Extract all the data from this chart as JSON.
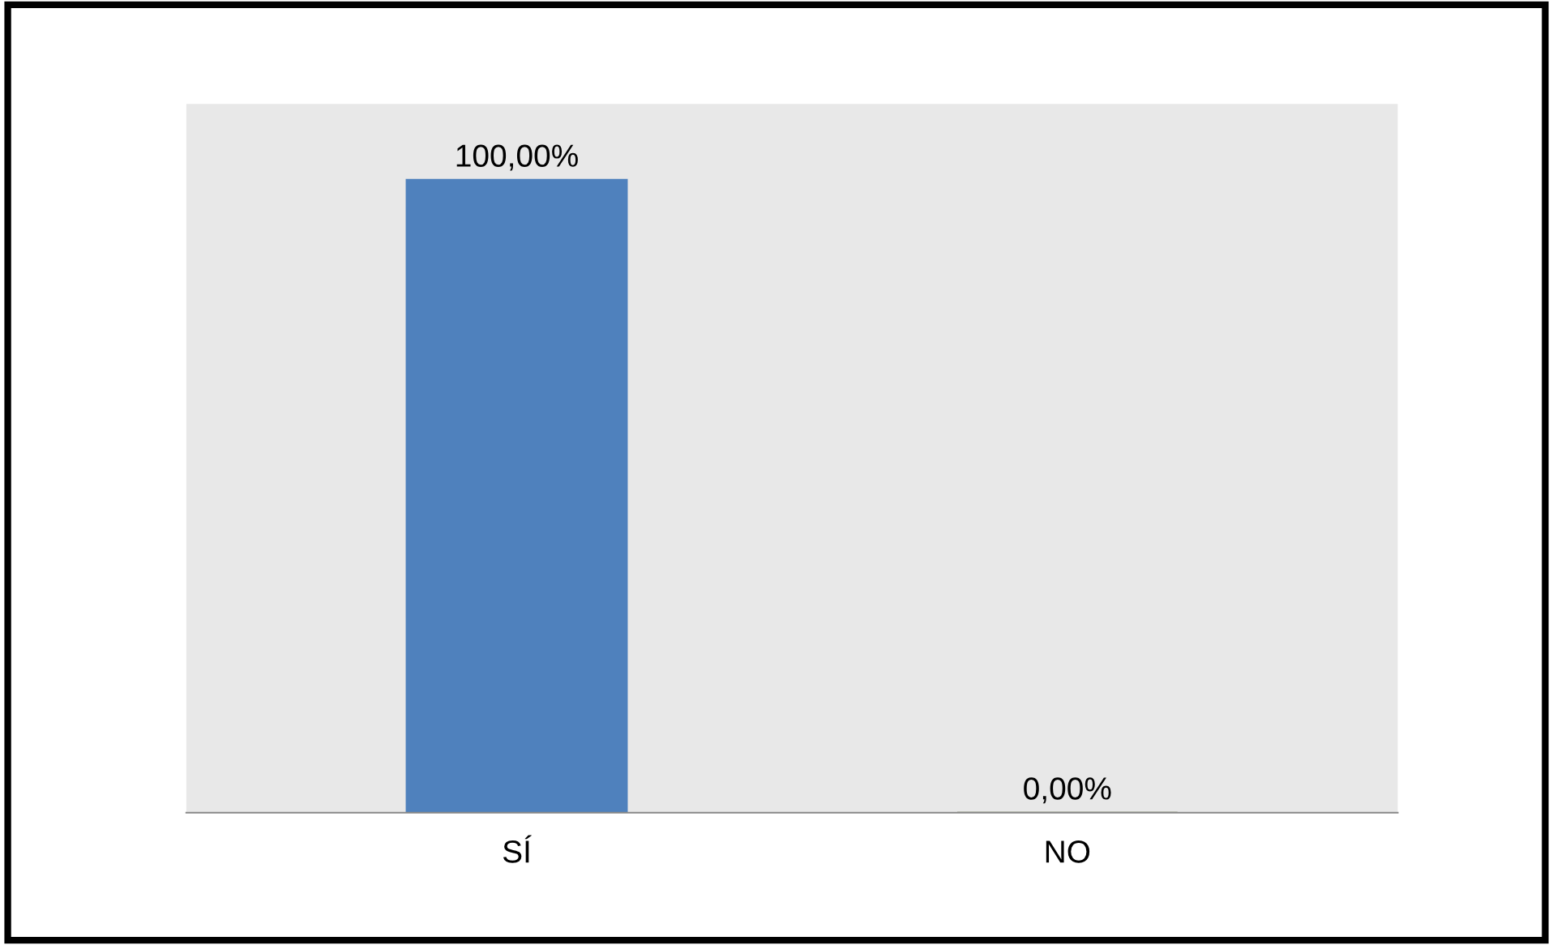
{
  "chart_data": {
    "type": "bar",
    "categories": [
      "SÍ",
      "NO"
    ],
    "values": [
      100,
      0
    ],
    "colors": [
      "#4f81bd",
      "#4f6228"
    ],
    "value_labels": [
      "100,00%",
      "0,00%"
    ],
    "ylim": [
      0,
      112
    ],
    "grid": false,
    "legend": false
  }
}
